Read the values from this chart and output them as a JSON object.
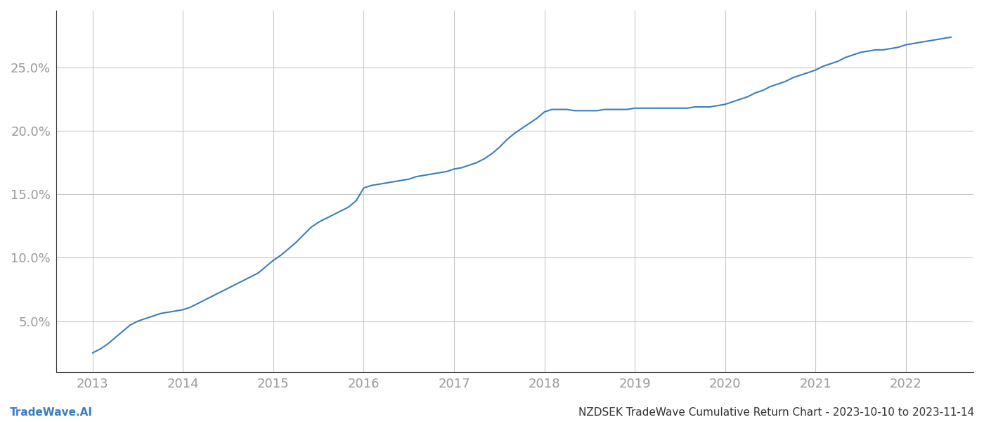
{
  "title": "NZDSEK TradeWave Cumulative Return Chart - 2023-10-10 to 2023-11-14",
  "watermark": "TradeWave.AI",
  "line_color": "#3a7ebf",
  "background_color": "#ffffff",
  "grid_color": "#c8c8c8",
  "x_values": [
    2013.0,
    2013.083,
    2013.167,
    2013.25,
    2013.333,
    2013.417,
    2013.5,
    2013.583,
    2013.667,
    2013.75,
    2013.833,
    2013.917,
    2014.0,
    2014.083,
    2014.167,
    2014.25,
    2014.333,
    2014.417,
    2014.5,
    2014.583,
    2014.667,
    2014.75,
    2014.833,
    2014.917,
    2015.0,
    2015.083,
    2015.167,
    2015.25,
    2015.333,
    2015.417,
    2015.5,
    2015.583,
    2015.667,
    2015.75,
    2015.833,
    2015.917,
    2016.0,
    2016.083,
    2016.167,
    2016.25,
    2016.333,
    2016.417,
    2016.5,
    2016.583,
    2016.667,
    2016.75,
    2016.833,
    2016.917,
    2017.0,
    2017.083,
    2017.167,
    2017.25,
    2017.333,
    2017.417,
    2017.5,
    2017.583,
    2017.667,
    2017.75,
    2017.833,
    2017.917,
    2018.0,
    2018.083,
    2018.167,
    2018.25,
    2018.333,
    2018.417,
    2018.5,
    2018.583,
    2018.667,
    2018.75,
    2018.833,
    2018.917,
    2019.0,
    2019.083,
    2019.167,
    2019.25,
    2019.333,
    2019.417,
    2019.5,
    2019.583,
    2019.667,
    2019.75,
    2019.833,
    2019.917,
    2020.0,
    2020.083,
    2020.167,
    2020.25,
    2020.333,
    2020.417,
    2020.5,
    2020.583,
    2020.667,
    2020.75,
    2020.833,
    2020.917,
    2021.0,
    2021.083,
    2021.167,
    2021.25,
    2021.333,
    2021.417,
    2021.5,
    2021.583,
    2021.667,
    2021.75,
    2021.833,
    2021.917,
    2022.0,
    2022.083,
    2022.167,
    2022.25,
    2022.333,
    2022.417,
    2022.5
  ],
  "y_values": [
    2.5,
    2.8,
    3.2,
    3.7,
    4.2,
    4.7,
    5.0,
    5.2,
    5.4,
    5.6,
    5.7,
    5.8,
    5.9,
    6.1,
    6.4,
    6.7,
    7.0,
    7.3,
    7.6,
    7.9,
    8.2,
    8.5,
    8.8,
    9.3,
    9.8,
    10.2,
    10.7,
    11.2,
    11.8,
    12.4,
    12.8,
    13.1,
    13.4,
    13.7,
    14.0,
    14.5,
    15.5,
    15.7,
    15.8,
    15.9,
    16.0,
    16.1,
    16.2,
    16.4,
    16.5,
    16.6,
    16.7,
    16.8,
    17.0,
    17.1,
    17.3,
    17.5,
    17.8,
    18.2,
    18.7,
    19.3,
    19.8,
    20.2,
    20.6,
    21.0,
    21.5,
    21.7,
    21.7,
    21.7,
    21.6,
    21.6,
    21.6,
    21.6,
    21.7,
    21.7,
    21.7,
    21.7,
    21.8,
    21.8,
    21.8,
    21.8,
    21.8,
    21.8,
    21.8,
    21.8,
    21.9,
    21.9,
    21.9,
    22.0,
    22.1,
    22.3,
    22.5,
    22.7,
    23.0,
    23.2,
    23.5,
    23.7,
    23.9,
    24.2,
    24.4,
    24.6,
    24.8,
    25.1,
    25.3,
    25.5,
    25.8,
    26.0,
    26.2,
    26.3,
    26.4,
    26.4,
    26.5,
    26.6,
    26.8,
    26.9,
    27.0,
    27.1,
    27.2,
    27.3,
    27.4
  ],
  "xlim": [
    2012.6,
    2022.75
  ],
  "ylim": [
    1.0,
    29.5
  ],
  "xticks": [
    2013,
    2014,
    2015,
    2016,
    2017,
    2018,
    2019,
    2020,
    2021,
    2022
  ],
  "yticks": [
    5.0,
    10.0,
    15.0,
    20.0,
    25.0
  ],
  "tick_label_color": "#999999",
  "tick_fontsize": 13,
  "footer_fontsize": 11,
  "line_width": 1.5,
  "spine_color": "#333333"
}
